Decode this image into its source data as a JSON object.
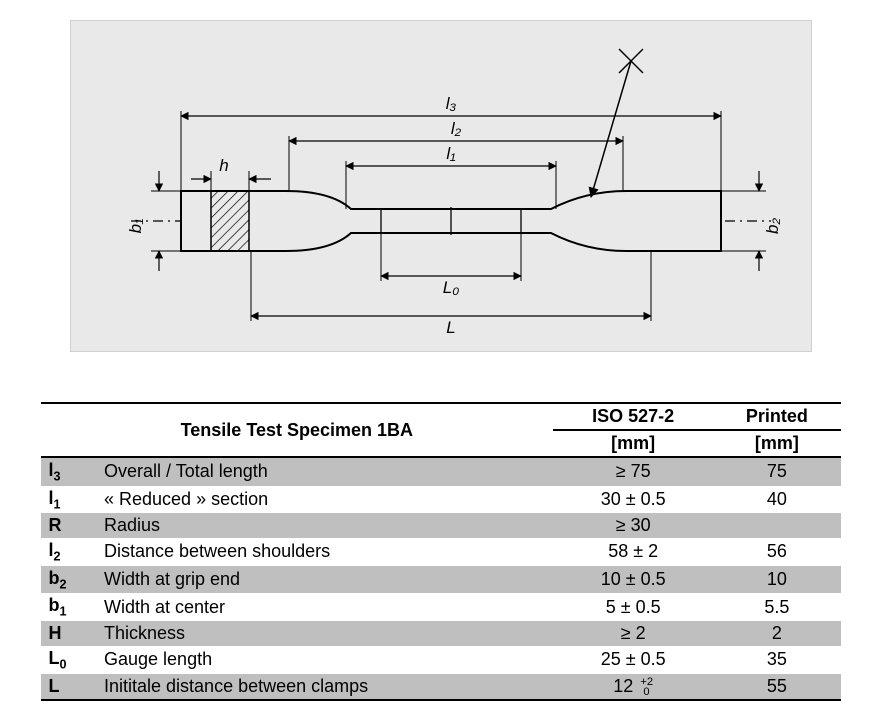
{
  "diagram": {
    "background": "#e9e9e9",
    "panel_border": "#d0d0d0",
    "stroke": "#000000",
    "centerline_dash": "8 4 2 4",
    "labels": {
      "l3": "l₃",
      "l2": "l₂",
      "l1": "l₁",
      "L0": "L₀",
      "L": "L",
      "h": "h",
      "b1": "b₁",
      "b2": "b₂"
    }
  },
  "table": {
    "title": "Tensile Test Specimen 1BA",
    "col_iso_header": "ISO 527-2",
    "col_printed_header": "Printed",
    "unit": "[mm]",
    "header_font_weight": "bold",
    "border_color": "#000000",
    "shade_color": "#bfbfbf",
    "rows": [
      {
        "sym": "l<sub>3</sub>",
        "desc": "Overall / Total length",
        "iso": "≥ 75",
        "printed": "75",
        "shade": true
      },
      {
        "sym": "l<sub>1</sub>",
        "desc": "« Reduced » section",
        "iso": "30 ± 0.5",
        "printed": "40",
        "shade": false
      },
      {
        "sym": "R",
        "desc": "Radius",
        "iso": "≥ 30",
        "printed": "",
        "shade": true
      },
      {
        "sym": "l<sub>2</sub>",
        "desc": "Distance between shoulders",
        "iso": "58 ± 2",
        "printed": "56",
        "shade": false
      },
      {
        "sym": "b<sub>2</sub>",
        "desc": "Width at grip end",
        "iso": "10 ± 0.5",
        "printed": "10",
        "shade": true
      },
      {
        "sym": "b<sub>1</sub>",
        "desc": "Width at center",
        "iso": "5 ± 0.5",
        "printed": "5.5",
        "shade": false
      },
      {
        "sym": "H",
        "desc": "Thickness",
        "iso": "≥ 2",
        "printed": "2",
        "shade": true
      },
      {
        "sym": "L<sub>0</sub>",
        "desc": "Gauge length",
        "iso": "25 ± 0.5",
        "printed": "35",
        "shade": false
      },
      {
        "sym": "L",
        "desc": "Inititale distance between clamps",
        "iso_html": "12 <span class='frac'>+2<br>&nbsp;0</span>",
        "printed": "55",
        "shade": true
      }
    ]
  }
}
